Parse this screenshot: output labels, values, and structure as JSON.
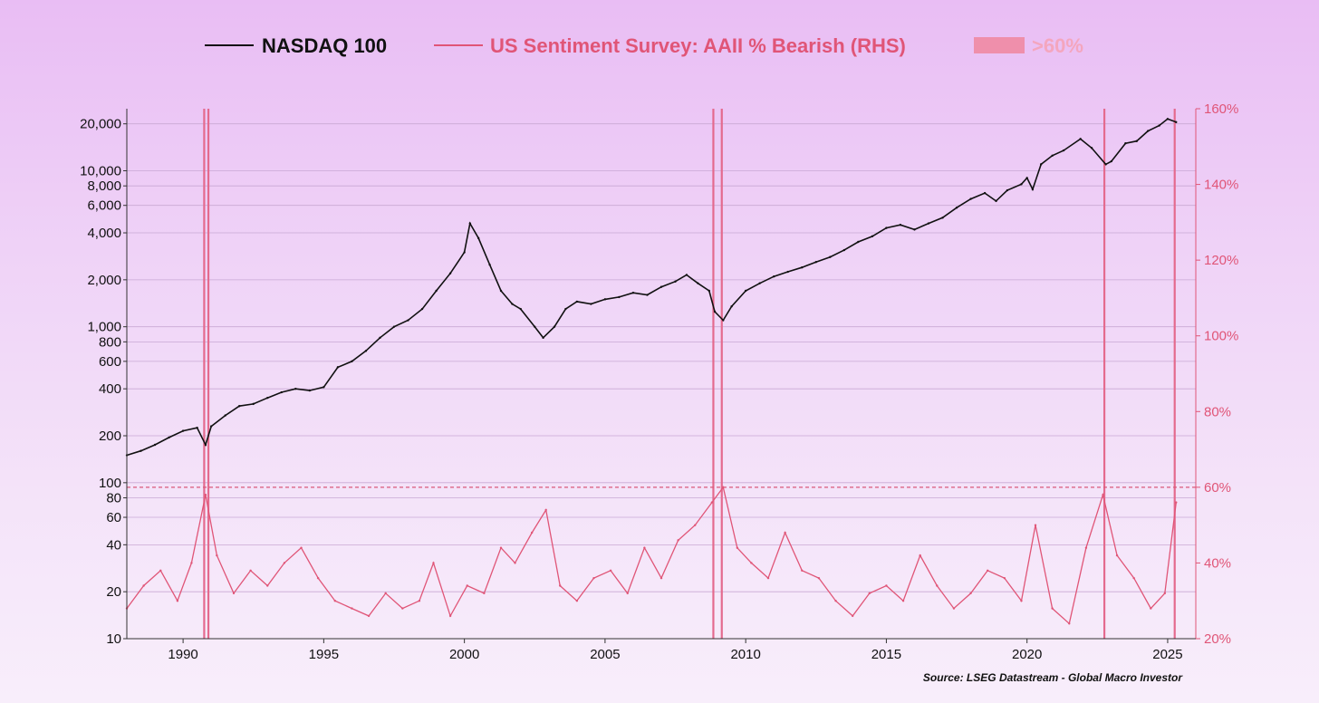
{
  "chart_data": {
    "type": "line",
    "title": "",
    "legend": [
      {
        "label": "NASDAQ 100",
        "style": "line",
        "color": "#111111"
      },
      {
        "label": "US Sentiment Survey: AAII % Bearish (RHS)",
        "style": "line",
        "color": "#e05577"
      },
      {
        "label": ">60%",
        "style": "band",
        "color": "#ef8fab"
      }
    ],
    "x_range": [
      1988.0,
      2026.0
    ],
    "x_ticks": [
      1990,
      1995,
      2000,
      2005,
      2010,
      2015,
      2020,
      2025
    ],
    "x_tick_labels": [
      "1990",
      "1995",
      "2000",
      "2005",
      "2010",
      "2015",
      "2020",
      "2025"
    ],
    "left_axis": {
      "scale": "log",
      "range": [
        10,
        25000
      ],
      "ticks": [
        10,
        20,
        40,
        60,
        80,
        100,
        200,
        400,
        600,
        800,
        1000,
        2000,
        4000,
        6000,
        8000,
        10000,
        20000
      ],
      "tick_labels": [
        "10",
        "20",
        "40",
        "60",
        "80",
        "100",
        "200",
        "400",
        "600",
        "800",
        "1,000",
        "2,000",
        "4,000",
        "6,000",
        "8,000",
        "10,000",
        "20,000"
      ]
    },
    "right_axis": {
      "scale": "linear",
      "range": [
        20,
        160
      ],
      "ticks": [
        20,
        40,
        60,
        80,
        100,
        120,
        140,
        160
      ],
      "tick_labels": [
        "20%",
        "40%",
        "60%",
        "80%",
        "100%",
        "120%",
        "140%",
        "160%"
      ],
      "color": "#e05577"
    },
    "threshold": {
      "value": 60,
      "label": ">60%"
    },
    "highlight_dates": [
      1990.75,
      1990.9,
      2008.85,
      2009.15,
      2022.75,
      2025.25
    ],
    "series": [
      {
        "name": "NASDAQ 100",
        "axis": "left",
        "x": [
          1988.0,
          1988.5,
          1989.0,
          1989.5,
          1990.0,
          1990.5,
          1990.8,
          1991.0,
          1991.5,
          1992.0,
          1992.5,
          1993.0,
          1993.5,
          1994.0,
          1994.5,
          1995.0,
          1995.5,
          1996.0,
          1996.5,
          1997.0,
          1997.5,
          1998.0,
          1998.5,
          1999.0,
          1999.5,
          2000.0,
          2000.2,
          2000.5,
          2000.9,
          2001.3,
          2001.7,
          2002.0,
          2002.5,
          2002.8,
          2003.2,
          2003.6,
          2004.0,
          2004.5,
          2005.0,
          2005.5,
          2006.0,
          2006.5,
          2007.0,
          2007.5,
          2007.9,
          2008.3,
          2008.7,
          2008.9,
          2009.2,
          2009.5,
          2010.0,
          2010.5,
          2011.0,
          2011.5,
          2012.0,
          2012.5,
          2013.0,
          2013.5,
          2014.0,
          2014.5,
          2015.0,
          2015.5,
          2016.0,
          2016.5,
          2017.0,
          2017.5,
          2018.0,
          2018.5,
          2018.9,
          2019.3,
          2019.8,
          2020.0,
          2020.2,
          2020.5,
          2020.9,
          2021.3,
          2021.9,
          2022.3,
          2022.8,
          2023.0,
          2023.5,
          2023.9,
          2024.3,
          2024.7,
          2025.0,
          2025.3
        ],
        "values": [
          150,
          160,
          175,
          195,
          215,
          225,
          175,
          230,
          270,
          310,
          320,
          350,
          380,
          400,
          390,
          410,
          550,
          600,
          700,
          850,
          1000,
          1100,
          1300,
          1700,
          2200,
          3000,
          4600,
          3700,
          2500,
          1700,
          1400,
          1300,
          1000,
          850,
          1000,
          1300,
          1450,
          1400,
          1500,
          1550,
          1650,
          1600,
          1800,
          1950,
          2150,
          1900,
          1700,
          1250,
          1100,
          1350,
          1700,
          1900,
          2100,
          2250,
          2400,
          2600,
          2800,
          3100,
          3500,
          3800,
          4300,
          4500,
          4200,
          4600,
          5000,
          5800,
          6600,
          7200,
          6400,
          7500,
          8200,
          9000,
          7600,
          11000,
          12500,
          13500,
          16000,
          14000,
          11000,
          11500,
          15000,
          15500,
          18000,
          19500,
          21500,
          20500
        ]
      },
      {
        "name": "US Sentiment Survey: AAII % Bearish (RHS)",
        "axis": "right",
        "x": [
          1988.0,
          1988.6,
          1989.2,
          1989.8,
          1990.3,
          1990.8,
          1991.2,
          1991.8,
          1992.4,
          1993.0,
          1993.6,
          1994.2,
          1994.8,
          1995.4,
          1996.0,
          1996.6,
          1997.2,
          1997.8,
          1998.4,
          1998.9,
          1999.5,
          2000.1,
          2000.7,
          2001.3,
          2001.8,
          2002.4,
          2002.9,
          2003.4,
          2004.0,
          2004.6,
          2005.2,
          2005.8,
          2006.4,
          2007.0,
          2007.6,
          2008.2,
          2008.8,
          2009.2,
          2009.7,
          2010.2,
          2010.8,
          2011.4,
          2012.0,
          2012.6,
          2013.2,
          2013.8,
          2014.4,
          2015.0,
          2015.6,
          2016.2,
          2016.8,
          2017.4,
          2018.0,
          2018.6,
          2019.2,
          2019.8,
          2020.3,
          2020.9,
          2021.5,
          2022.1,
          2022.7,
          2023.2,
          2023.8,
          2024.4,
          2024.9,
          2025.3
        ],
        "values": [
          28,
          34,
          38,
          30,
          40,
          58,
          42,
          32,
          38,
          34,
          40,
          44,
          36,
          30,
          28,
          26,
          32,
          28,
          30,
          40,
          26,
          34,
          32,
          44,
          40,
          48,
          54,
          34,
          30,
          36,
          38,
          32,
          44,
          36,
          46,
          50,
          56,
          60,
          44,
          40,
          36,
          48,
          38,
          36,
          30,
          26,
          32,
          34,
          30,
          42,
          34,
          28,
          32,
          38,
          36,
          30,
          50,
          28,
          24,
          44,
          58,
          42,
          36,
          28,
          32,
          56
        ]
      }
    ],
    "source": "Source: LSEG Datastream - Global Macro Investor"
  }
}
